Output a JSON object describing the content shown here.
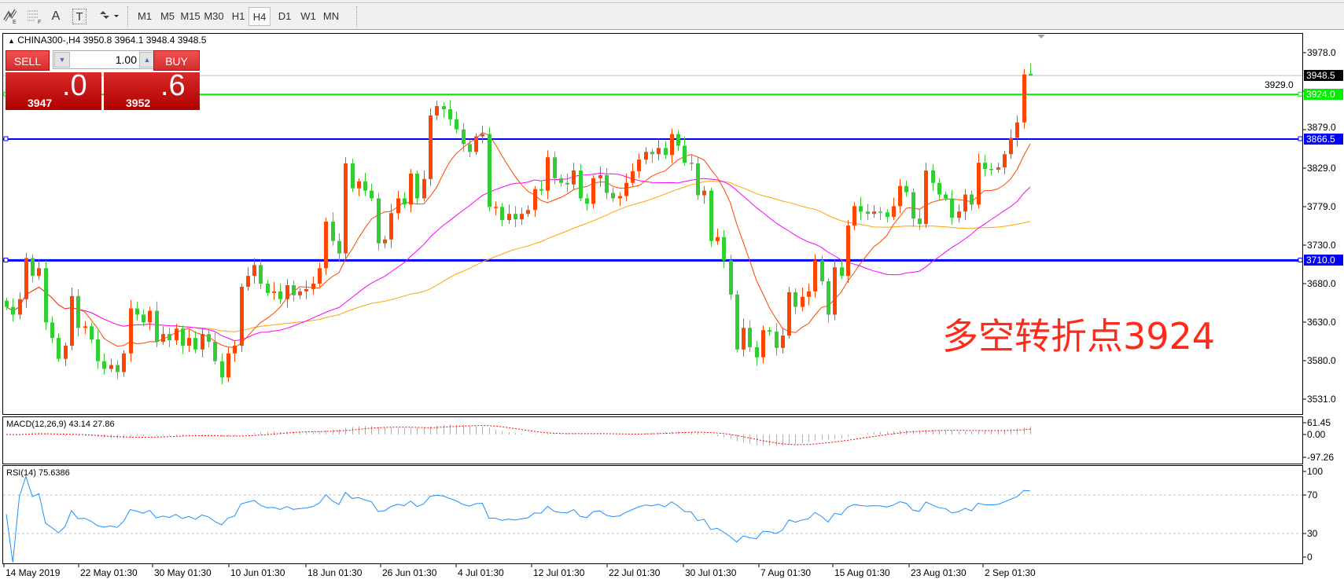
{
  "toolbar": {
    "tools": [
      {
        "icon": "elliott-wave-icon"
      },
      {
        "icon": "fibonacci-icon"
      },
      {
        "icon": "text-icon",
        "label": "A"
      },
      {
        "icon": "text-label-icon",
        "label": "T"
      },
      {
        "icon": "arrows-dropdown-icon"
      }
    ],
    "timeframes": [
      "M1",
      "M5",
      "M15",
      "M30",
      "H1",
      "H4",
      "D1",
      "W1",
      "MN"
    ],
    "selected": "H4"
  },
  "chart": {
    "symbol_line": "CHINA300-,H4  3950.8 3964.1 3948.4 3948.5",
    "trade_panel": {
      "sell_label": "SELL",
      "buy_label": "BUY",
      "volume": "1.00",
      "sell_big": "3947",
      "sell_frac": ".0",
      "buy_big": "3952",
      "buy_frac": ".6"
    },
    "annotation": "多空转折点3924",
    "price_ticks": [
      "3978.0",
      "3929.0",
      "3879.0",
      "3829.0",
      "3779.0",
      "3730.0",
      "3680.0",
      "3630.0",
      "3580.0",
      "3531.0"
    ],
    "levels": [
      {
        "label": "3948.5",
        "value": 3948.5,
        "color": "#000000"
      },
      {
        "label": "3924.0",
        "value": 3924.0,
        "color": "#00ee00"
      },
      {
        "label": "3866.5",
        "value": 3866.5,
        "color": "#0000ff"
      },
      {
        "label": "3710.0",
        "value": 3710.0,
        "color": "#0000ff"
      }
    ],
    "time_labels": [
      "14 May 2019",
      "22 May 01:30",
      "30 May 01:30",
      "10 Jun 01:30",
      "18 Jun 01:30",
      "26 Jun 01:30",
      "4 Jul 01:30",
      "12 Jul 01:30",
      "22 Jul 01:30",
      "30 Jul 01:30",
      "7 Aug 01:30",
      "15 Aug 01:30",
      "23 Aug 01:30",
      "2 Sep 01:30"
    ],
    "macd": {
      "label": "MACD(12,26,9) 43.14 27.86",
      "ticks": [
        "61.45",
        "0.00",
        "-97.26"
      ]
    },
    "rsi": {
      "label": "RSI(14) 75.6386",
      "ticks": [
        "100",
        "70",
        "30",
        "0"
      ]
    }
  },
  "colors": {
    "up": "#ff4500",
    "down": "#32cd32",
    "ma_fast": "#ff4500",
    "ma_mid": "#ff00ff",
    "ma_slow": "#ffa500",
    "rsi": "#1e90ff",
    "macd_signal": "#ff0000"
  },
  "chart_data": {
    "type": "candlestick",
    "symbol": "CHINA300-",
    "timeframe": "H4",
    "ylim": [
      3531,
      3978
    ],
    "last": {
      "open": 3950.8,
      "high": 3964.1,
      "low": 3948.4,
      "close": 3948.5
    },
    "closes": [
      3650,
      3640,
      3660,
      3713,
      3690,
      3700,
      3630,
      3610,
      3583,
      3600,
      3664,
      3623,
      3625,
      3608,
      3580,
      3570,
      3575,
      3566,
      3590,
      3648,
      3640,
      3630,
      3645,
      3605,
      3615,
      3607,
      3622,
      3600,
      3610,
      3595,
      3615,
      3605,
      3580,
      3559,
      3590,
      3600,
      3676,
      3690,
      3704,
      3680,
      3668,
      3670,
      3660,
      3678,
      3665,
      3670,
      3673,
      3680,
      3700,
      3760,
      3735,
      3719,
      3835,
      3803,
      3812,
      3800,
      3790,
      3732,
      3737,
      3771,
      3790,
      3782,
      3822,
      3790,
      3815,
      3897,
      3909,
      3905,
      3892,
      3879,
      3860,
      3850,
      3870,
      3873,
      3779,
      3779,
      3762,
      3770,
      3763,
      3770,
      3775,
      3802,
      3800,
      3843,
      3816,
      3810,
      3808,
      3826,
      3790,
      3783,
      3816,
      3820,
      3797,
      3790,
      3793,
      3810,
      3825,
      3840,
      3850,
      3847,
      3855,
      3846,
      3873,
      3858,
      3836,
      3835,
      3794,
      3800,
      3735,
      3740,
      3710,
      3666,
      3595,
      3623,
      3598,
      3585,
      3620,
      3618,
      3597,
      3613,
      3669,
      3650,
      3663,
      3670,
      3710,
      3683,
      3640,
      3701,
      3690,
      3755,
      3780,
      3773,
      3770,
      3773,
      3772,
      3766,
      3780,
      3806,
      3798,
      3764,
      3757,
      3826,
      3810,
      3795,
      3790,
      3765,
      3773,
      3795,
      3782,
      3836,
      3828,
      3827,
      3830,
      3847,
      3868,
      3888,
      3950,
      3948.5
    ],
    "horizontal_lines": [
      3924.0,
      3866.5,
      3710.0
    ],
    "indicators": [
      "MACD(12,26,9)",
      "RSI(14)"
    ]
  }
}
